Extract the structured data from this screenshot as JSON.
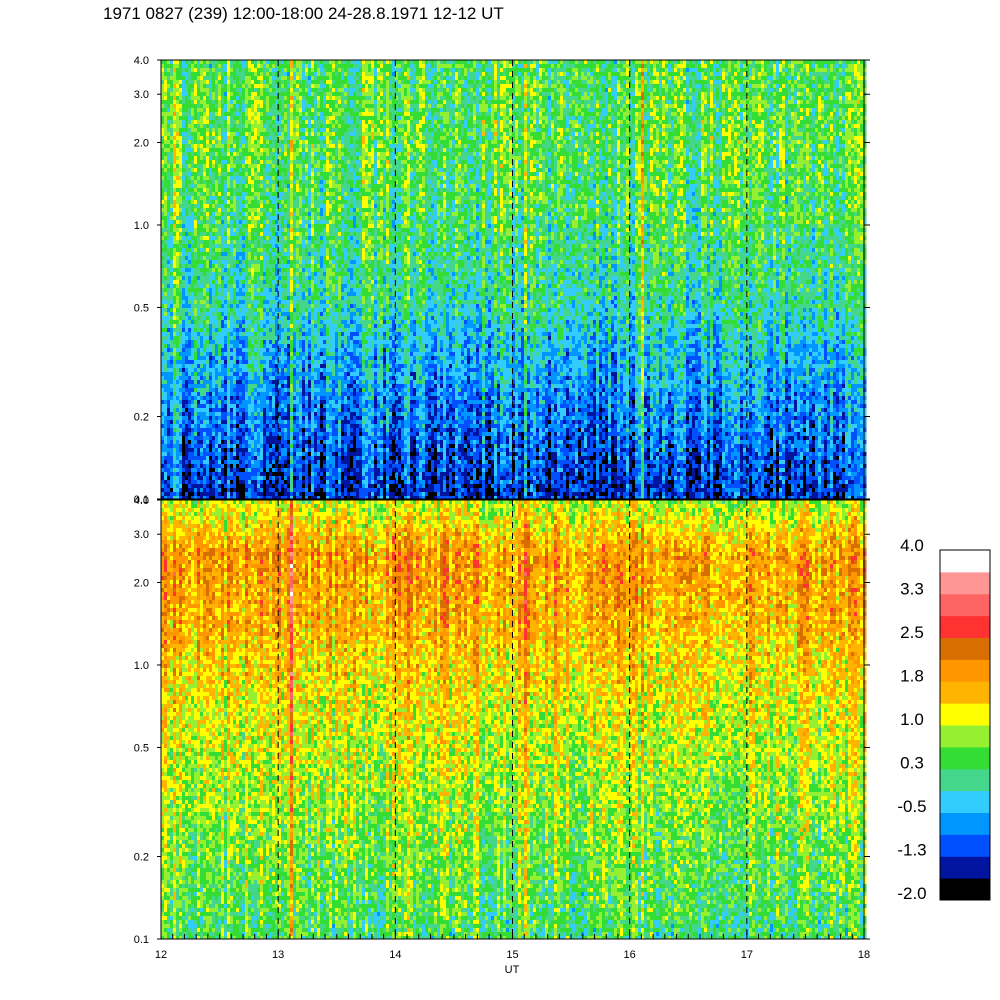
{
  "title": "1971 0827 (239) 12:00-18:00 24-28.8.1971  12-12 UT",
  "chart_data": {
    "type": "heatmap",
    "title": "1971 0827 (239) 12:00-18:00 24-28.8.1971  12-12 UT",
    "xlabel": "UT",
    "ylabel": "",
    "x_range": [
      12,
      18
    ],
    "x_ticks": [
      {
        "value": 12,
        "label": "12"
      },
      {
        "value": 13,
        "label": "13"
      },
      {
        "value": 14,
        "label": "14"
      },
      {
        "value": 15,
        "label": "15"
      },
      {
        "value": 16,
        "label": "16"
      },
      {
        "value": 17,
        "label": "17"
      },
      {
        "value": 18,
        "label": "18"
      }
    ],
    "dashed_verticals": [
      13,
      14,
      15,
      16,
      17
    ],
    "y_scale": "log",
    "y_range": [
      0.1,
      4.0
    ],
    "y_ticks": [
      {
        "value": 0.1,
        "label": "0.1"
      },
      {
        "value": 0.2,
        "label": "0.2"
      },
      {
        "value": 0.5,
        "label": "0.5"
      },
      {
        "value": 1.0,
        "label": "1.0"
      },
      {
        "value": 2.0,
        "label": "2.0"
      },
      {
        "value": 3.0,
        "label": "3.0"
      },
      {
        "value": 4.0,
        "label": "4.0"
      }
    ],
    "panels": [
      {
        "name": "",
        "profile": [
          {
            "f": 0.1,
            "level": -1.3
          },
          {
            "f": 0.2,
            "level": -0.8
          },
          {
            "f": 0.35,
            "level": -0.4
          },
          {
            "f": 0.5,
            "level": 0.0
          },
          {
            "f": 1.0,
            "level": 0.3
          },
          {
            "f": 2.0,
            "level": 0.5
          },
          {
            "f": 4.0,
            "level": 0.4
          }
        ],
        "bright_streaks": [
          12.1,
          13.1,
          14.1,
          15.1,
          16.1
        ]
      },
      {
        "name": "",
        "profile": [
          {
            "f": 0.1,
            "level": 0.3
          },
          {
            "f": 0.2,
            "level": 0.6
          },
          {
            "f": 0.5,
            "level": 1.0
          },
          {
            "f": 1.0,
            "level": 1.4
          },
          {
            "f": 1.5,
            "level": 1.7
          },
          {
            "f": 2.5,
            "level": 1.9
          },
          {
            "f": 4.0,
            "level": 0.9
          }
        ],
        "bright_streaks": [
          12.1,
          13.1,
          14.1,
          15.1,
          16.1
        ]
      }
    ],
    "colorbar": {
      "range": [
        -2.0,
        4.0
      ],
      "labels": [
        "4.0",
        "3.3",
        "2.5",
        "1.8",
        "1.0",
        "0.3",
        "-0.5",
        "-1.3",
        "-2.0"
      ],
      "colors": [
        "#000000",
        "#0014a0",
        "#0050ff",
        "#0096ff",
        "#33ccff",
        "#44d68a",
        "#33dd33",
        "#96f032",
        "#ffff00",
        "#ffb400",
        "#ff9600",
        "#d96e00",
        "#ff3232",
        "#ff6464",
        "#ff9696",
        "#ffffff"
      ]
    }
  }
}
